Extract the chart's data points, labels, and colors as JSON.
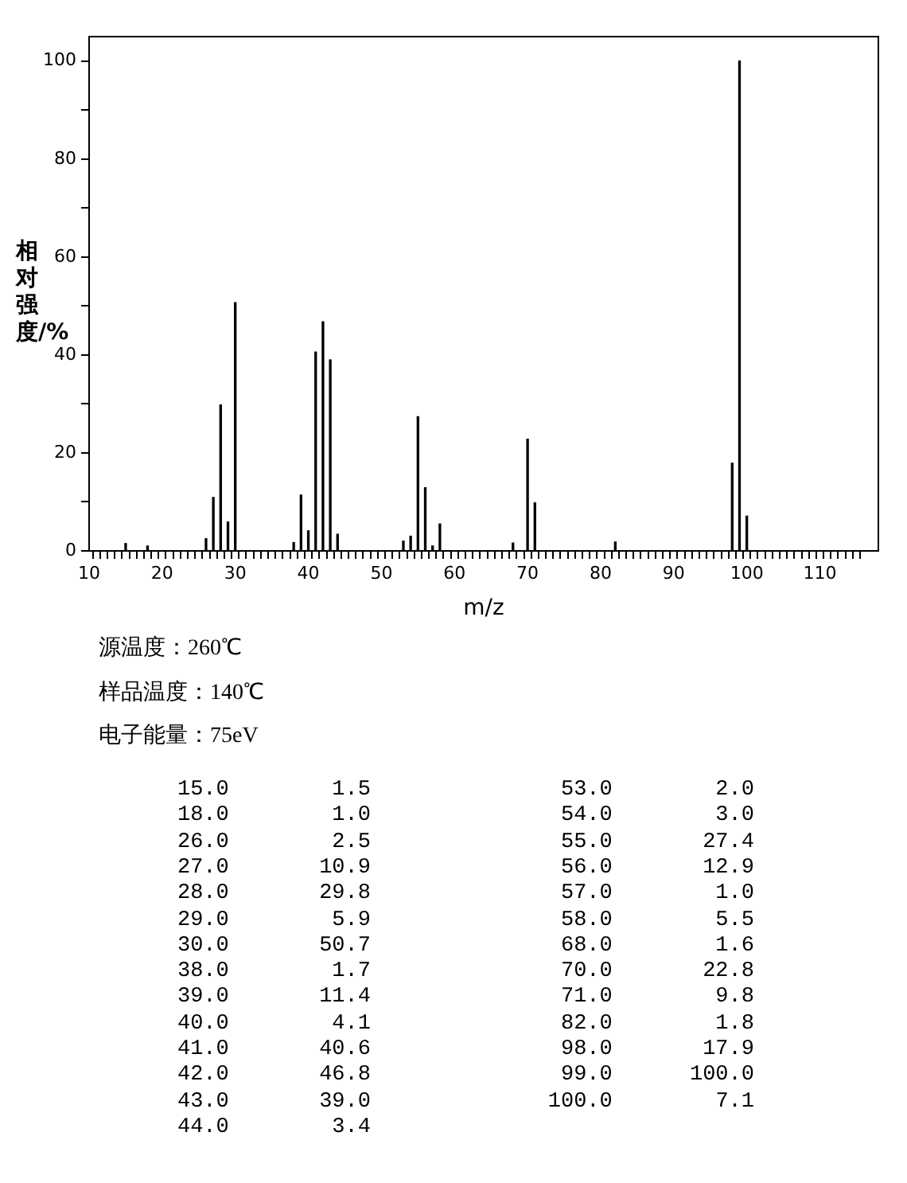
{
  "chart_data": {
    "type": "bar",
    "xlabel": "m/z",
    "ylabel": "相对强度/%",
    "x": [
      15,
      18,
      26,
      27,
      28,
      29,
      30,
      38,
      39,
      40,
      41,
      42,
      43,
      44,
      53,
      54,
      55,
      56,
      57,
      58,
      68,
      70,
      71,
      82,
      98,
      99,
      100
    ],
    "values": [
      1.5,
      1.0,
      2.5,
      10.9,
      29.8,
      5.9,
      50.7,
      1.7,
      11.4,
      4.1,
      40.6,
      46.8,
      39.0,
      3.4,
      2.0,
      3.0,
      27.4,
      12.9,
      1.0,
      5.5,
      1.6,
      22.8,
      9.8,
      1.8,
      17.9,
      100.0,
      7.1
    ],
    "color": "#000000",
    "grid": false,
    "legend": false,
    "xlim": [
      10,
      118
    ],
    "ylim": [
      0,
      105
    ],
    "xticks": [
      10,
      {
        "value": 11,
        "label": null
      },
      {
        "value": 12,
        "label": null
      },
      {
        "value": 13,
        "label": null
      },
      {
        "value": 14,
        "label": null
      },
      {
        "value": 15,
        "label": null
      },
      {
        "value": 16,
        "label": null
      },
      {
        "value": 17,
        "label": null
      },
      {
        "value": 18,
        "label": null
      },
      {
        "value": 19,
        "label": null
      },
      20,
      {
        "value": 21,
        "label": null
      },
      {
        "value": 22,
        "label": null
      },
      {
        "value": 23,
        "label": null
      },
      {
        "value": 24,
        "label": null
      },
      {
        "value": 25,
        "label": null
      },
      {
        "value": 26,
        "label": null
      },
      {
        "value": 27,
        "label": null
      },
      {
        "value": 28,
        "label": null
      },
      {
        "value": 29,
        "label": null
      },
      30,
      {
        "value": 31,
        "label": null
      },
      {
        "value": 32,
        "label": null
      },
      {
        "value": 33,
        "label": null
      },
      {
        "value": 34,
        "label": null
      },
      {
        "value": 35,
        "label": null
      },
      {
        "value": 36,
        "label": null
      },
      {
        "value": 37,
        "label": null
      },
      {
        "value": 38,
        "label": null
      },
      {
        "value": 39,
        "label": null
      },
      40,
      {
        "value": 41,
        "label": null
      },
      {
        "value": 42,
        "label": null
      },
      {
        "value": 43,
        "label": null
      },
      {
        "value": 44,
        "label": null
      },
      {
        "value": 45,
        "label": null
      },
      {
        "value": 46,
        "label": null
      },
      {
        "value": 47,
        "label": null
      },
      {
        "value": 48,
        "label": null
      },
      {
        "value": 49,
        "label": null
      },
      50,
      {
        "value": 51,
        "label": null
      },
      {
        "value": 52,
        "label": null
      },
      {
        "value": 53,
        "label": null
      },
      {
        "value": 54,
        "label": null
      },
      {
        "value": 55,
        "label": null
      },
      {
        "value": 56,
        "label": null
      },
      {
        "value": 57,
        "label": null
      },
      {
        "value": 58,
        "label": null
      },
      {
        "value": 59,
        "label": null
      },
      60,
      {
        "value": 61,
        "label": null
      },
      {
        "value": 62,
        "label": null
      },
      {
        "value": 63,
        "label": null
      },
      {
        "value": 64,
        "label": null
      },
      {
        "value": 65,
        "label": null
      },
      {
        "value": 66,
        "label": null
      },
      {
        "value": 67,
        "label": null
      },
      {
        "value": 68,
        "label": null
      },
      {
        "value": 69,
        "label": null
      },
      70,
      {
        "value": 71,
        "label": null
      },
      {
        "value": 72,
        "label": null
      },
      {
        "value": 73,
        "label": null
      },
      {
        "value": 74,
        "label": null
      },
      {
        "value": 75,
        "label": null
      },
      {
        "value": 76,
        "label": null
      },
      {
        "value": 77,
        "label": null
      },
      {
        "value": 78,
        "label": null
      },
      {
        "value": 79,
        "label": null
      },
      80,
      {
        "value": 81,
        "label": null
      },
      {
        "value": 82,
        "label": null
      },
      {
        "value": 83,
        "label": null
      },
      {
        "value": 84,
        "label": null
      },
      {
        "value": 85,
        "label": null
      },
      {
        "value": 86,
        "label": null
      },
      {
        "value": 87,
        "label": null
      },
      {
        "value": 88,
        "label": null
      },
      {
        "value": 89,
        "label": null
      },
      90,
      {
        "value": 91,
        "label": null
      },
      {
        "value": 92,
        "label": null
      },
      {
        "value": 93,
        "label": null
      },
      {
        "value": 94,
        "label": null
      },
      {
        "value": 95,
        "label": null
      },
      {
        "value": 96,
        "label": null
      },
      {
        "value": 97,
        "label": null
      },
      {
        "value": 98,
        "label": null
      },
      {
        "value": 99,
        "label": null
      },
      100,
      {
        "value": 101,
        "label": null
      },
      {
        "value": 102,
        "label": null
      },
      {
        "value": 103,
        "label": null
      },
      {
        "value": 104,
        "label": null
      },
      {
        "value": 105,
        "label": null
      },
      {
        "value": 106,
        "label": null
      },
      {
        "value": 107,
        "label": null
      },
      {
        "value": 108,
        "label": null
      },
      {
        "value": 109,
        "label": null
      },
      110,
      {
        "value": 111,
        "label": null
      },
      {
        "value": 112,
        "label": null
      },
      {
        "value": 113,
        "label": null
      },
      {
        "value": 114,
        "label": null
      },
      {
        "value": 115,
        "label": null
      }
    ],
    "yticks": [
      0,
      {
        "value": 10,
        "label": null
      },
      20,
      {
        "value": 30,
        "label": null
      },
      40,
      {
        "value": 50,
        "label": null
      },
      60,
      {
        "value": 70,
        "label": null
      },
      80,
      {
        "value": 90,
        "label": null
      },
      100
    ],
    "annotations": [
      "源温度：260℃",
      "样品温度：140℃",
      "电子能量：75eV",
      "15.0        1.5",
      "18.0        1.0",
      "26.0        2.5",
      "27.0       10.9",
      "28.0       29.8",
      "29.0        5.9",
      "30.0       50.7",
      "38.0        1.7",
      "39.0       11.4",
      "40.0        4.1",
      "41.0       40.6",
      "42.0       46.8",
      "43.0       39.0",
      "44.0        3.4",
      "53.0        2.0",
      "54.0        3.0",
      "55.0       27.4",
      "56.0       12.9",
      "57.0        1.0",
      "58.0        5.5",
      "68.0        1.6",
      "70.0       22.8",
      "71.0        9.8",
      "82.0        1.8",
      "98.0       17.9",
      "99.0      100.0",
      "100.0        7.1"
    ]
  }
}
